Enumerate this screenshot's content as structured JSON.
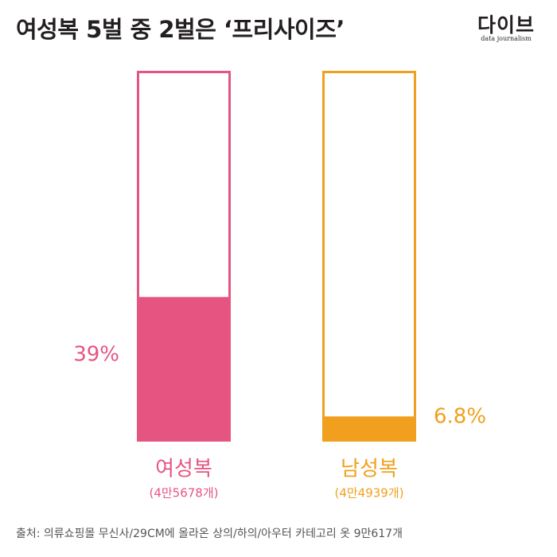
{
  "title": "여성복 5벌 중 2벌은 ‘프리사이즈’",
  "logo": {
    "main": "다이브",
    "sub": "data journalism"
  },
  "source": "출처: 의류쇼핑몰 무신사/29CM에 올라온 상의/하의/아우터 카테고리 옷 9만617개",
  "colors": {
    "women": "#e65582",
    "men": "#f0a01e",
    "text": "#231f20",
    "source": "#555555"
  },
  "chart_data": {
    "type": "bar",
    "title": "여성복 5벌 중 2벌은 ‘프리사이즈’",
    "ylim": [
      0,
      100
    ],
    "unit": "%",
    "categories": [
      "여성복",
      "남성복"
    ],
    "values": [
      39,
      6.8
    ],
    "value_labels": [
      "39%",
      "6.8%"
    ],
    "sublabels": [
      "(4만5678개)",
      "(4만4939개)"
    ],
    "xlabel": "",
    "ylabel": "",
    "grid": false
  }
}
